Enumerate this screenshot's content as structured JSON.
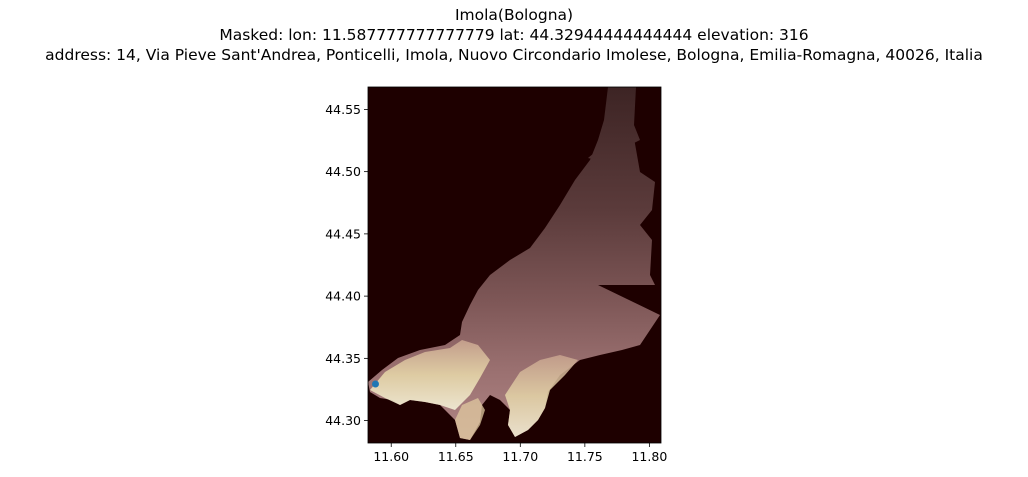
{
  "title": {
    "line1": "Imola(Bologna)",
    "line2": "Masked: lon: 11.587777777777779 lat: 44.32944444444444 elevation: 316",
    "line3": "address: 14, Via Pieve Sant'Andrea, Ponticelli, Imola, Nuovo Circondario Imolese, Bologna, Emilia-Romagna, 40026, Italia"
  },
  "map": {
    "type": "heatmap",
    "colormap": "pink (dark to light)",
    "background_color": "#1e0000",
    "marker_color": "#1f77b4",
    "marker": {
      "lon": 11.5878,
      "lat": 44.3294
    },
    "xlim": [
      11.582,
      11.809
    ],
    "ylim": [
      44.282,
      44.568
    ],
    "x_ticks": [
      {
        "value": 11.6,
        "label": "11.60"
      },
      {
        "value": 11.65,
        "label": "11.65"
      },
      {
        "value": 11.7,
        "label": "11.70"
      },
      {
        "value": 11.75,
        "label": "11.75"
      },
      {
        "value": 11.8,
        "label": "11.80"
      }
    ],
    "y_ticks": [
      {
        "value": 44.3,
        "label": "44.30"
      },
      {
        "value": 44.35,
        "label": "44.35"
      },
      {
        "value": 44.4,
        "label": "44.40"
      },
      {
        "value": 44.45,
        "label": "44.45"
      },
      {
        "value": 44.5,
        "label": "44.50"
      },
      {
        "value": 44.55,
        "label": "44.55"
      }
    ],
    "grid": false
  }
}
